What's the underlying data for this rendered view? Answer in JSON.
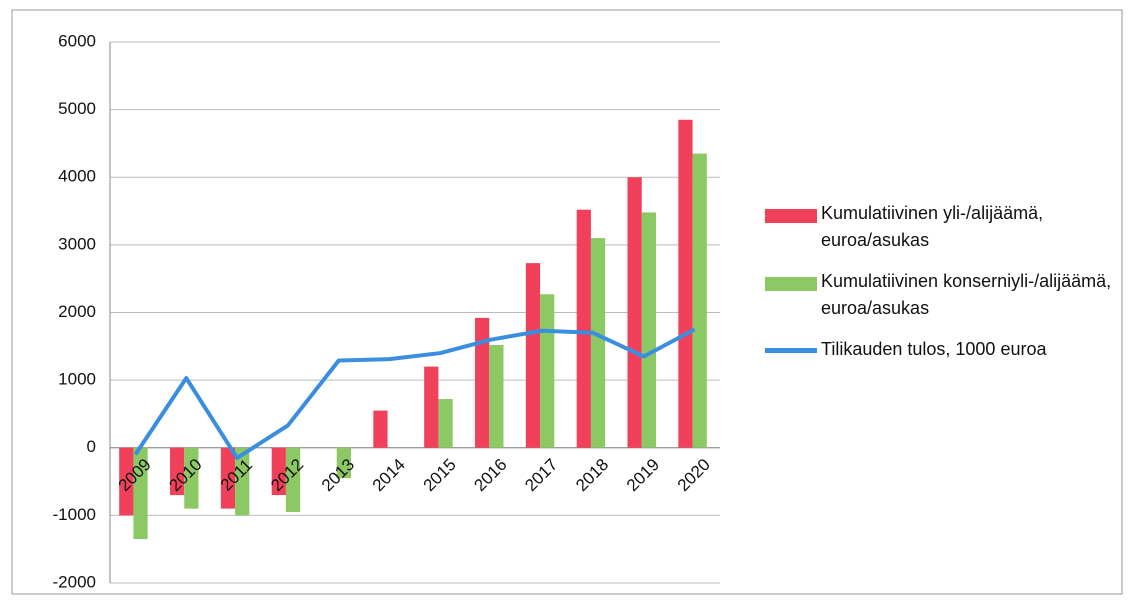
{
  "chart_data": {
    "type": "bar_line",
    "categories": [
      "2009",
      "2010",
      "2011",
      "2012",
      "2013",
      "2014",
      "2015",
      "2016",
      "2017",
      "2018",
      "2019",
      "2020"
    ],
    "series": [
      {
        "name": "Kumulatiivinen yli-/alijäämä, euroa/asukas",
        "type": "bar",
        "color": "#f0405a",
        "values": [
          -1000,
          -700,
          -900,
          -700,
          0,
          550,
          1200,
          1920,
          2730,
          3520,
          4000,
          4850
        ]
      },
      {
        "name": "Kumulatiivinen konserniyli-/alijäämä, euroa/asukas",
        "type": "bar",
        "color": "#8cc864",
        "values": [
          -1350,
          -900,
          -1000,
          -950,
          -450,
          0,
          720,
          1520,
          2270,
          3100,
          3480,
          4350
        ]
      },
      {
        "name": "Tilikauden tulos, 1000 euroa",
        "type": "line",
        "color": "#3a8ee0",
        "values": [
          -100,
          1030,
          -150,
          330,
          1290,
          1310,
          1400,
          1600,
          1730,
          1700,
          1350,
          1750
        ]
      }
    ],
    "ylim": [
      -2000,
      6000
    ],
    "yticks": [
      -2000,
      -1000,
      0,
      1000,
      2000,
      3000,
      4000,
      5000,
      6000
    ],
    "grid": true,
    "legend": "right"
  }
}
